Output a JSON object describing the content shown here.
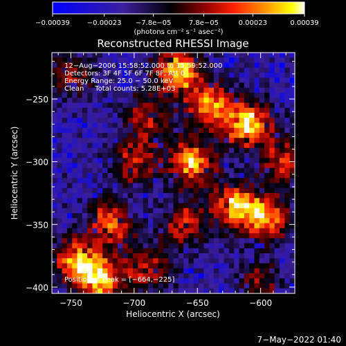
{
  "chart_data": {
    "type": "heatmap",
    "title": "Reconstructed RHESSI Image",
    "xlabel": "Heliocentric X (arcsec)",
    "ylabel": "Heliocentric Y (arcsec)",
    "xlim": [
      -765,
      -573
    ],
    "ylim": [
      -405,
      -213
    ],
    "x_ticks": [
      -750,
      -700,
      -650,
      -600
    ],
    "x_tick_labels": [
      "−750",
      "−700",
      "−650",
      "−600"
    ],
    "y_ticks": [
      -400,
      -350,
      -300,
      -250
    ],
    "y_tick_labels": [
      "−400",
      "−350",
      "−300",
      "−250"
    ],
    "colorbar": {
      "range": [
        -0.00039,
        0.00039
      ],
      "ticks": [
        -0.00039,
        -0.00023,
        -7.8e-05,
        7.8e-05,
        0.00023,
        0.00039
      ],
      "tick_labels": [
        "−0.00039",
        "−0.00023",
        "−7.8e−05",
        "7.8e−05",
        "0.00023",
        "0.00039"
      ],
      "unit_label": "(photons cm⁻² s⁻¹ asec⁻²)",
      "colormap": [
        "#0000ff",
        "#3a1f9e",
        "#000000",
        "#8b0000",
        "#ff2000",
        "#ff9000",
        "#ffff00",
        "#ffffff"
      ]
    },
    "annotations": [
      "12−Aug−2006 15:58:52.000 to 15:59:52.000",
      "Detectors: 3F 4F 5F 6F 7F 8F, Att 0",
      "Energy Range: 25.0 − 50.0 keV",
      "Clean     Total counts: 5.28E+03"
    ],
    "peak_label": "Position of Peak = [−664,−225]",
    "peak_position": [
      -664,
      -225
    ],
    "grid": false,
    "hotspots": [
      {
        "x": -610,
        "y": -270,
        "amplitude": 1.0
      },
      {
        "x": -665,
        "y": -228,
        "amplitude": 0.95
      },
      {
        "x": -655,
        "y": -300,
        "amplitude": 0.9
      },
      {
        "x": -700,
        "y": -300,
        "amplitude": 0.6
      },
      {
        "x": -718,
        "y": -348,
        "amplitude": 0.7
      },
      {
        "x": -745,
        "y": -380,
        "amplitude": 0.85
      },
      {
        "x": -725,
        "y": -395,
        "amplitude": 0.8
      },
      {
        "x": -620,
        "y": -335,
        "amplitude": 0.85
      },
      {
        "x": -595,
        "y": -345,
        "amplitude": 0.75
      },
      {
        "x": -660,
        "y": -350,
        "amplitude": 0.6
      },
      {
        "x": -640,
        "y": -255,
        "amplitude": 0.75
      },
      {
        "x": -690,
        "y": -265,
        "amplitude": 0.5
      },
      {
        "x": -750,
        "y": -232,
        "amplitude": 0.45
      },
      {
        "x": -580,
        "y": -300,
        "amplitude": 0.6
      },
      {
        "x": -690,
        "y": -385,
        "amplitude": 0.55
      },
      {
        "x": -600,
        "y": -395,
        "amplitude": 0.4
      }
    ]
  },
  "footer": {
    "timestamp": "7−May−2022 01:40"
  }
}
